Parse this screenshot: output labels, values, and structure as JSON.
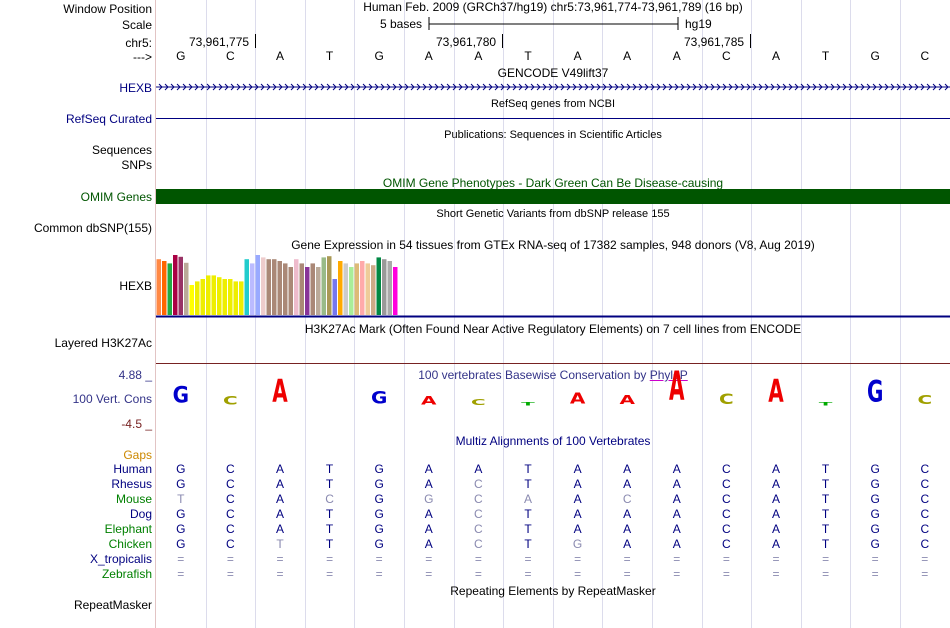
{
  "header": {
    "window_position_label": "Window Position",
    "window_position_value": "Human Feb. 2009 (GRCh37/hg19)   chr5:73,961,774-73,961,789 (16 bp)",
    "scale_label": "Scale",
    "scale_value": "5 bases",
    "assembly": "hg19",
    "chrom_label": "chr5:",
    "coords": [
      "73,961,775",
      "73,961,780",
      "73,961,785"
    ],
    "strand_label": "--->",
    "bases": [
      "G",
      "C",
      "A",
      "T",
      "G",
      "A",
      "A",
      "T",
      "A",
      "A",
      "A",
      "C",
      "A",
      "T",
      "G",
      "C"
    ]
  },
  "tracks": {
    "gencode_title": "GENCODE V49lift37",
    "gencode_gene": "HEXB",
    "refseq_title": "RefSeq genes from NCBI",
    "refseq_label": "RefSeq Curated",
    "publications_title": "Publications: Sequences in Scientific Articles",
    "sequences_label": "Sequences",
    "snps_label": "SNPs",
    "omim_title": "OMIM Gene Phenotypes - Dark Green Can Be Disease-causing",
    "omim_label": "OMIM Genes",
    "dbsnp_title": "Short Genetic Variants from dbSNP release 155",
    "dbsnp_label": "Common dbSNP(155)",
    "gtex_title": "Gene Expression in 54 tissues from GTEx RNA-seq of 17382 samples, 948 donors (V8, Aug 2019)",
    "gtex_gene": "HEXB",
    "h3k27_title": "H3K27Ac Mark (Often Found Near Active Regulatory Elements) on 7 cell lines from ENCODE",
    "h3k27_label": "Layered H3K27Ac",
    "cons_title": "100 vertebrates Basewise Conservation by ",
    "cons_title_link": "PhyloP",
    "cons_label": "100 Vert. Cons",
    "cons_max": "4.88 _",
    "cons_min": "-4.5 _",
    "multiz_title": "Multiz Alignments of 100 Vertebrates",
    "gaps_label": "Gaps",
    "repeat_title": "Repeating Elements by RepeatMasker",
    "repeat_label": "RepeatMasker"
  },
  "colors": {
    "track_blue": "#000080",
    "omim_green": "#005500",
    "gaps_orange": "#cc8800",
    "species_green": "#008000",
    "phylop_G": "#0000cc",
    "phylop_C": "#a0a000",
    "phylop_A": "#ee0000",
    "phylop_T": "#00aa00"
  },
  "gtex_bars": [
    {
      "color": "#ff8844",
      "level": 0.93
    },
    {
      "color": "#ff6600",
      "level": 0.9
    },
    {
      "color": "#22aa44",
      "level": 0.86
    },
    {
      "color": "#aa0044",
      "level": 1.0
    },
    {
      "color": "#993366",
      "level": 0.97
    },
    {
      "color": "#bbaa99",
      "level": 0.87
    },
    {
      "color": "#ffff00",
      "level": 0.5
    },
    {
      "color": "#eeee00",
      "level": 0.56
    },
    {
      "color": "#eeee00",
      "level": 0.6
    },
    {
      "color": "#eeee00",
      "level": 0.66
    },
    {
      "color": "#eeee00",
      "level": 0.66
    },
    {
      "color": "#eeee00",
      "level": 0.63
    },
    {
      "color": "#eeee00",
      "level": 0.6
    },
    {
      "color": "#eeee00",
      "level": 0.6
    },
    {
      "color": "#eeee00",
      "level": 0.56
    },
    {
      "color": "#eeee00",
      "level": 0.56
    },
    {
      "color": "#22cccc",
      "level": 0.93
    },
    {
      "color": "#bbbbff",
      "level": 0.86
    },
    {
      "color": "#99aaff",
      "level": 1.0
    },
    {
      "color": "#eecccc",
      "level": 0.96
    },
    {
      "color": "#aa8877",
      "level": 0.93
    },
    {
      "color": "#aa8877",
      "level": 0.93
    },
    {
      "color": "#aa8877",
      "level": 0.9
    },
    {
      "color": "#aa8877",
      "level": 0.86
    },
    {
      "color": "#aa8877",
      "level": 0.8
    },
    {
      "color": "#eebbcc",
      "level": 0.93
    },
    {
      "color": "#aa8877",
      "level": 0.86
    },
    {
      "color": "#883399",
      "level": 0.8
    },
    {
      "color": "#aa8877",
      "level": 0.86
    },
    {
      "color": "#bbaa99",
      "level": 0.8
    },
    {
      "color": "#99bb88",
      "level": 0.96
    },
    {
      "color": "#aa9955",
      "level": 0.98
    },
    {
      "color": "#7777ee",
      "level": 0.6
    },
    {
      "color": "#ffaa00",
      "level": 0.9
    },
    {
      "color": "#cccccc",
      "level": 0.86
    },
    {
      "color": "#aaee99",
      "level": 0.8
    },
    {
      "color": "#ddbb77",
      "level": 0.86
    },
    {
      "color": "#ffaaaa",
      "level": 0.9
    },
    {
      "color": "#eecc99",
      "level": 0.86
    },
    {
      "color": "#ccaa88",
      "level": 0.83
    },
    {
      "color": "#008844",
      "level": 0.96
    },
    {
      "color": "#999999",
      "level": 0.93
    },
    {
      "color": "#aaaaaa",
      "level": 0.9
    },
    {
      "color": "#ff00dd",
      "level": 0.8
    }
  ],
  "phylop": [
    {
      "letter": "G",
      "score": 1.7
    },
    {
      "letter": "C",
      "score": 0.9
    },
    {
      "letter": "A",
      "score": 2.4
    },
    {
      "letter": "",
      "score": 0
    },
    {
      "letter": "G",
      "score": 1.3
    },
    {
      "letter": "A",
      "score": 0.9
    },
    {
      "letter": "C",
      "score": 0.6
    },
    {
      "letter": "T",
      "score": 0.3
    },
    {
      "letter": "A",
      "score": 1.2
    },
    {
      "letter": "A",
      "score": 1.0
    },
    {
      "letter": "A",
      "score": 3.1
    },
    {
      "letter": "C",
      "score": 1.1
    },
    {
      "letter": "A",
      "score": 2.4
    },
    {
      "letter": "T",
      "score": 0.3
    },
    {
      "letter": "G",
      "score": 2.3
    },
    {
      "letter": "C",
      "score": 1.0
    }
  ],
  "species": [
    {
      "name": "Human",
      "color": "#000080",
      "row": [
        "G",
        "C",
        "A",
        "T",
        "G",
        "A",
        "A",
        "T",
        "A",
        "A",
        "A",
        "C",
        "A",
        "T",
        "G",
        "C"
      ],
      "faded": []
    },
    {
      "name": "Rhesus",
      "color": "#000080",
      "row": [
        "G",
        "C",
        "A",
        "T",
        "G",
        "A",
        "C",
        "T",
        "A",
        "A",
        "A",
        "C",
        "A",
        "T",
        "G",
        "C"
      ],
      "faded": [
        6
      ]
    },
    {
      "name": "Mouse",
      "color": "#008000",
      "row": [
        "T",
        "C",
        "A",
        "C",
        "G",
        "G",
        "C",
        "A",
        "A",
        "C",
        "A",
        "C",
        "A",
        "T",
        "G",
        "C"
      ],
      "faded": [
        0,
        3,
        5,
        6,
        7,
        9
      ]
    },
    {
      "name": "Dog",
      "color": "#000080",
      "row": [
        "G",
        "C",
        "A",
        "T",
        "G",
        "A",
        "C",
        "T",
        "A",
        "A",
        "A",
        "C",
        "A",
        "T",
        "G",
        "C"
      ],
      "faded": [
        6
      ]
    },
    {
      "name": "Elephant",
      "color": "#008000",
      "row": [
        "G",
        "C",
        "A",
        "T",
        "G",
        "A",
        "C",
        "T",
        "A",
        "A",
        "A",
        "C",
        "A",
        "T",
        "G",
        "C"
      ],
      "faded": [
        6
      ]
    },
    {
      "name": "Chicken",
      "color": "#008000",
      "row": [
        "G",
        "C",
        "T",
        "T",
        "G",
        "A",
        "C",
        "T",
        "G",
        "A",
        "A",
        "C",
        "A",
        "T",
        "G",
        "C"
      ],
      "faded": [
        2,
        6,
        8
      ]
    },
    {
      "name": "X_tropicalis",
      "color": "#000080",
      "row": [
        "=",
        "=",
        "=",
        "=",
        "=",
        "=",
        "=",
        "=",
        "=",
        "=",
        "=",
        "=",
        "=",
        "=",
        "=",
        "="
      ],
      "faded": [
        0,
        1,
        2,
        3,
        4,
        5,
        6,
        7,
        8,
        9,
        10,
        11,
        12,
        13,
        14,
        15
      ]
    },
    {
      "name": "Zebrafish",
      "color": "#008000",
      "row": [
        "=",
        "=",
        "=",
        "=",
        "=",
        "=",
        "=",
        "=",
        "=",
        "=",
        "=",
        "=",
        "=",
        "=",
        "=",
        "="
      ],
      "faded": [
        0,
        1,
        2,
        3,
        4,
        5,
        6,
        7,
        8,
        9,
        10,
        11,
        12,
        13,
        14,
        15
      ]
    }
  ]
}
